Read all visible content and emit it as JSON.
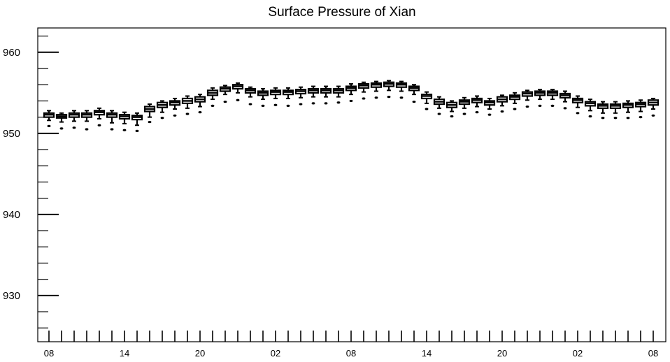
{
  "chart_data": {
    "type": "box",
    "title": "Surface Pressure of Xian",
    "xlabel": "",
    "ylabel": "",
    "ylim": [
      924.3,
      963.0
    ],
    "yticks": [
      930,
      940,
      950,
      960
    ],
    "ytick_labels": [
      "930",
      "940",
      "950",
      "960"
    ],
    "xticks": [
      0,
      6,
      12,
      18,
      24,
      30,
      36,
      42,
      48
    ],
    "xtick_labels": [
      "08",
      "14",
      "20",
      "02",
      "08",
      "14",
      "20",
      "02",
      "08"
    ],
    "x_hours": [
      0,
      1,
      2,
      3,
      4,
      5,
      6,
      7,
      8,
      9,
      10,
      11,
      12,
      13,
      14,
      15,
      16,
      17,
      18,
      19,
      20,
      21,
      22,
      23,
      24,
      25,
      26,
      27,
      28,
      29,
      30,
      31,
      32,
      33,
      34,
      35,
      36,
      37,
      38,
      39,
      40,
      41,
      42,
      43,
      44,
      45,
      46,
      47,
      48
    ],
    "median": [
      952.3,
      952.1,
      952.3,
      952.3,
      952.6,
      952.3,
      952.1,
      952.0,
      953.0,
      953.5,
      953.8,
      954.0,
      954.2,
      955.0,
      955.5,
      955.8,
      955.3,
      955.0,
      955.1,
      955.1,
      955.2,
      955.3,
      955.3,
      955.3,
      955.6,
      955.9,
      956.0,
      956.1,
      956.0,
      955.6,
      954.6,
      953.9,
      953.5,
      953.9,
      954.1,
      953.8,
      954.2,
      954.5,
      954.9,
      955.0,
      955.0,
      954.7,
      954.1,
      953.7,
      953.4,
      953.4,
      953.5,
      953.6,
      953.8
    ],
    "q1": [
      952.0,
      951.9,
      952.0,
      952.0,
      952.3,
      952.0,
      951.8,
      951.7,
      952.7,
      953.2,
      953.5,
      953.7,
      953.9,
      954.7,
      955.2,
      955.5,
      955.0,
      954.7,
      954.8,
      954.8,
      954.9,
      955.0,
      955.0,
      955.0,
      955.3,
      955.6,
      955.7,
      955.8,
      955.7,
      955.3,
      954.3,
      953.6,
      953.2,
      953.6,
      953.8,
      953.5,
      953.9,
      954.2,
      954.6,
      954.7,
      954.7,
      954.4,
      953.8,
      953.4,
      953.1,
      953.1,
      953.2,
      953.3,
      953.5
    ],
    "q3": [
      952.5,
      952.3,
      952.5,
      952.5,
      952.8,
      952.5,
      952.3,
      952.2,
      953.3,
      953.8,
      954.0,
      954.3,
      954.5,
      955.3,
      955.7,
      956.0,
      955.5,
      955.2,
      955.3,
      955.3,
      955.4,
      955.5,
      955.5,
      955.5,
      955.8,
      956.1,
      956.2,
      956.3,
      956.2,
      955.8,
      954.8,
      954.2,
      953.8,
      954.1,
      954.3,
      954.0,
      954.5,
      954.7,
      955.1,
      955.2,
      955.2,
      954.9,
      954.3,
      953.9,
      953.6,
      953.6,
      953.7,
      953.8,
      954.1
    ],
    "whisker_low": [
      951.6,
      951.4,
      951.5,
      951.5,
      951.8,
      951.3,
      951.2,
      951.0,
      952.0,
      952.6,
      953.0,
      953.1,
      953.3,
      954.2,
      954.8,
      955.0,
      954.5,
      954.2,
      954.3,
      954.3,
      954.4,
      954.5,
      954.5,
      954.5,
      954.8,
      955.1,
      955.2,
      955.3,
      955.2,
      954.8,
      953.7,
      953.1,
      952.7,
      953.1,
      953.3,
      953.0,
      953.4,
      953.7,
      954.1,
      954.2,
      954.2,
      953.9,
      953.2,
      952.8,
      952.5,
      952.5,
      952.6,
      952.7,
      953.0
    ],
    "whisker_high": [
      952.8,
      952.5,
      952.8,
      952.8,
      953.1,
      952.8,
      952.6,
      952.5,
      953.6,
      954.0,
      954.3,
      954.6,
      954.8,
      955.6,
      955.9,
      956.2,
      955.7,
      955.5,
      955.6,
      955.6,
      955.7,
      955.8,
      955.8,
      955.8,
      956.1,
      956.3,
      956.4,
      956.5,
      956.4,
      956.0,
      955.1,
      954.5,
      954.0,
      954.4,
      954.6,
      954.3,
      954.7,
      955.0,
      955.3,
      955.4,
      955.4,
      955.2,
      954.6,
      954.2,
      953.9,
      953.9,
      954.0,
      954.1,
      954.3
    ],
    "outlier": [
      950.9,
      950.6,
      950.7,
      950.5,
      951.0,
      950.5,
      950.4,
      950.3,
      951.4,
      951.9,
      952.2,
      952.4,
      952.6,
      953.4,
      953.9,
      954.1,
      953.6,
      953.4,
      953.5,
      953.4,
      953.6,
      953.7,
      953.7,
      953.8,
      954.0,
      954.3,
      954.4,
      954.5,
      954.4,
      953.9,
      953.0,
      952.4,
      952.1,
      952.4,
      952.6,
      952.3,
      952.7,
      953.0,
      953.3,
      953.4,
      953.4,
      953.1,
      952.5,
      952.1,
      951.9,
      951.9,
      951.9,
      952.0,
      952.2
    ]
  }
}
